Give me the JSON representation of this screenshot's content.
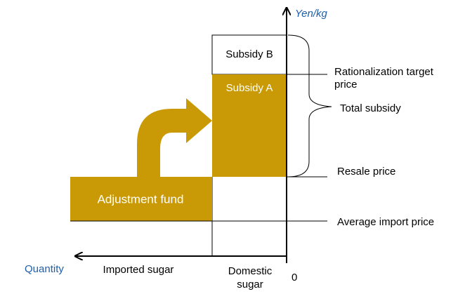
{
  "axes": {
    "y_label": "Yen/kg",
    "x_label": "Quantity",
    "origin": "0"
  },
  "blocks": {
    "subsidy_b": "Subsidy B",
    "subsidy_a": "Subsidy A",
    "adjustment_fund": "Adjustment fund"
  },
  "price_levels": {
    "rationalization_target": [
      "Rationalization target",
      "price"
    ],
    "total_subsidy": "Total subsidy",
    "resale": "Resale price",
    "average_import": "Average import price"
  },
  "segments": {
    "imported": "Imported sugar",
    "domestic": [
      "Domestic",
      "sugar"
    ]
  }
}
